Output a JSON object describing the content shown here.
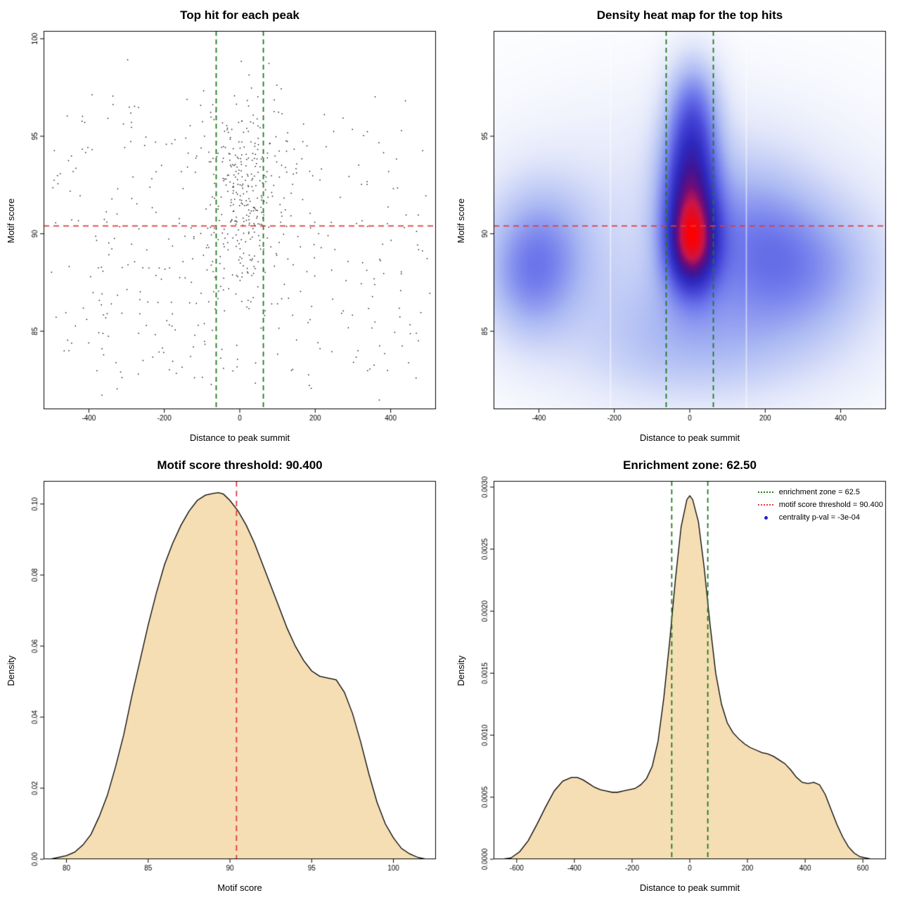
{
  "colors": {
    "background": "#ffffff",
    "threshold_line": "#e23b3b",
    "zone_line": "#1c7a1c",
    "density_fill": "#f5deb3",
    "density_stroke": "#000000",
    "point": "#000000",
    "pval_point": "#2222cc"
  },
  "chart_data": [
    {
      "id": "top-hit-scatter",
      "type": "scatter",
      "title": "Top hit for each peak",
      "xlabel": "Distance to peak summit",
      "ylabel": "Motif score",
      "xlim": [
        -520,
        520
      ],
      "ylim": [
        81,
        100.4
      ],
      "xtick_vals": [
        -400,
        -200,
        0,
        200,
        400
      ],
      "xtick_labels": [
        "-400",
        "-200",
        "0",
        "200",
        "400"
      ],
      "ytick_vals": [
        85,
        90,
        95,
        100
      ],
      "ytick_labels": [
        "85",
        "90",
        "95",
        "100"
      ],
      "red_hline": 90.4,
      "green_vlines": [
        -62.5,
        62.5
      ],
      "points": {
        "n": 680,
        "seed": 1337,
        "clusters": [
          {
            "w": 0.4,
            "x": {
              "dist": "normal",
              "mean": 15,
              "sd": 52
            },
            "y": {
              "dist": "normal",
              "mean": 92.2,
              "sd": 2.7
            }
          },
          {
            "w": 0.4,
            "x": {
              "dist": "uniform",
              "min": -505,
              "max": 505
            },
            "y": {
              "dist": "normal",
              "mean": 89.0,
              "sd": 3.1
            }
          },
          {
            "w": 0.12,
            "x": {
              "dist": "uniform",
              "min": -490,
              "max": 500
            },
            "y": {
              "dist": "uniform",
              "min": 82,
              "max": 86.5
            }
          },
          {
            "w": 0.08,
            "x": {
              "dist": "uniform",
              "min": -500,
              "max": 500
            },
            "y": {
              "dist": "uniform",
              "min": 93,
              "max": 97.6
            }
          }
        ]
      }
    },
    {
      "id": "density-heatmap",
      "type": "heatmap",
      "title": "Density heat map for the top hits",
      "xlabel": "Distance to peak summit",
      "ylabel": "Motif score",
      "xlim": [
        -520,
        520
      ],
      "ylim": [
        81,
        100.4
      ],
      "xtick_vals": [
        -400,
        -200,
        0,
        200,
        400
      ],
      "xtick_labels": [
        "-400",
        "-200",
        "0",
        "200",
        "400"
      ],
      "ytick_vals": [
        85,
        90,
        95
      ],
      "ytick_labels": [
        "85",
        "90",
        "95"
      ],
      "red_hline": 90.4,
      "green_vlines": [
        -62.5,
        62.5
      ],
      "kernels": [
        {
          "x": 5,
          "y": 89.3,
          "sx": 48,
          "sy": 1.7,
          "w": 1.0
        },
        {
          "x": 0,
          "y": 91.5,
          "sx": 52,
          "sy": 2.3,
          "w": 0.85
        },
        {
          "x": 5,
          "y": 94.5,
          "sx": 50,
          "sy": 2.1,
          "w": 0.6
        },
        {
          "x": 10,
          "y": 97.0,
          "sx": 46,
          "sy": 1.7,
          "w": 0.34
        },
        {
          "x": -395,
          "y": 89.3,
          "sx": 95,
          "sy": 2.4,
          "w": 0.42
        },
        {
          "x": -430,
          "y": 87.3,
          "sx": 80,
          "sy": 2.1,
          "w": 0.28
        },
        {
          "x": 300,
          "y": 88.2,
          "sx": 140,
          "sy": 2.5,
          "w": 0.44
        },
        {
          "x": 160,
          "y": 90.3,
          "sx": 110,
          "sy": 2.7,
          "w": 0.3
        },
        {
          "x": 0,
          "y": 89.8,
          "sx": 380,
          "sy": 4.8,
          "w": 0.2
        },
        {
          "x": -20,
          "y": 85.3,
          "sx": 190,
          "sy": 2.3,
          "w": 0.22
        },
        {
          "x": 60,
          "y": 83.5,
          "sx": 260,
          "sy": 1.9,
          "w": 0.13
        }
      ],
      "colormap": [
        [
          0.0,
          [
            255,
            255,
            255
          ]
        ],
        [
          0.1,
          [
            226,
            231,
            250
          ]
        ],
        [
          0.25,
          [
            172,
            186,
            243
          ]
        ],
        [
          0.4,
          [
            112,
            122,
            236
          ]
        ],
        [
          0.52,
          [
            72,
            72,
            216
          ]
        ],
        [
          0.63,
          [
            46,
            42,
            192
          ]
        ],
        [
          0.73,
          [
            62,
            22,
            152
          ]
        ],
        [
          0.81,
          [
            112,
            12,
            122
          ]
        ],
        [
          0.89,
          [
            202,
            22,
            72
          ]
        ],
        [
          1.0,
          [
            255,
            0,
            0
          ]
        ]
      ],
      "streaks": [
        -210,
        150
      ]
    },
    {
      "id": "motif-score-density",
      "type": "density",
      "title": "Motif score threshold: 90.400",
      "xlabel": "Motif score",
      "ylabel": "Density",
      "xlim": [
        78.6,
        102.6
      ],
      "ylim": [
        0,
        0.1065
      ],
      "xtick_vals": [
        80,
        85,
        90,
        95,
        100
      ],
      "xtick_labels": [
        "80",
        "85",
        "90",
        "95",
        "100"
      ],
      "ytick_vals": [
        0,
        0.02,
        0.04,
        0.06,
        0.08,
        0.1
      ],
      "ytick_labels": [
        "0.00",
        "0.02",
        "0.04",
        "0.06",
        "0.08",
        "0.10"
      ],
      "red_vline": 90.4,
      "curve_x": [
        79,
        80,
        80.5,
        81,
        81.5,
        82,
        82.5,
        83,
        83.5,
        84,
        84.5,
        85,
        85.5,
        86,
        86.5,
        87,
        87.5,
        88,
        88.5,
        89,
        89.3,
        89.6,
        90,
        90.5,
        91,
        91.5,
        92,
        92.5,
        93,
        93.5,
        94,
        94.5,
        95,
        95.5,
        96,
        96.5,
        97,
        97.5,
        98,
        98.5,
        99,
        99.5,
        100,
        100.5,
        101,
        101.5,
        102
      ],
      "curve_y": [
        0,
        0.001,
        0.002,
        0.004,
        0.007,
        0.012,
        0.018,
        0.026,
        0.035,
        0.046,
        0.056,
        0.066,
        0.075,
        0.083,
        0.089,
        0.094,
        0.098,
        0.101,
        0.1025,
        0.103,
        0.1032,
        0.1028,
        0.101,
        0.098,
        0.094,
        0.089,
        0.083,
        0.077,
        0.071,
        0.065,
        0.06,
        0.056,
        0.053,
        0.0515,
        0.051,
        0.0505,
        0.047,
        0.041,
        0.033,
        0.024,
        0.016,
        0.01,
        0.006,
        0.003,
        0.0015,
        0.0005,
        0
      ]
    },
    {
      "id": "distance-density",
      "type": "density",
      "title": "Enrichment zone: 62.50",
      "xlabel": "Distance to peak summit",
      "ylabel": "Density",
      "xlim": [
        -680,
        680
      ],
      "ylim": [
        0,
        0.00305
      ],
      "xtick_vals": [
        -600,
        -400,
        -200,
        0,
        200,
        400,
        600
      ],
      "xtick_labels": [
        "-600",
        "-400",
        "-200",
        "0",
        "200",
        "400",
        "600"
      ],
      "ytick_vals": [
        0,
        0.0005,
        0.001,
        0.0015,
        0.002,
        0.0025,
        0.003
      ],
      "ytick_labels": [
        "0.0000",
        "0.0005",
        "0.0010",
        "0.0015",
        "0.0020",
        "0.0025",
        "0.0030"
      ],
      "green_vlines": [
        -62.5,
        62.5
      ],
      "curve_x": [
        -650,
        -620,
        -590,
        -560,
        -530,
        -500,
        -470,
        -440,
        -410,
        -390,
        -370,
        -350,
        -330,
        -310,
        -290,
        -270,
        -250,
        -230,
        -210,
        -190,
        -170,
        -150,
        -130,
        -110,
        -90,
        -70,
        -50,
        -30,
        -10,
        0,
        10,
        30,
        50,
        70,
        90,
        110,
        130,
        150,
        170,
        190,
        210,
        230,
        250,
        270,
        290,
        310,
        330,
        350,
        370,
        390,
        410,
        430,
        450,
        470,
        490,
        510,
        530,
        550,
        570,
        590,
        610,
        630,
        650
      ],
      "curve_y": [
        0,
        1e-05,
        6e-05,
        0.00015,
        0.00028,
        0.00042,
        0.00055,
        0.00063,
        0.00066,
        0.00066,
        0.00064,
        0.00061,
        0.00058,
        0.00056,
        0.00055,
        0.00054,
        0.00054,
        0.00055,
        0.00056,
        0.00057,
        0.0006,
        0.00065,
        0.00075,
        0.00095,
        0.0013,
        0.00175,
        0.00225,
        0.00268,
        0.0029,
        0.00293,
        0.0029,
        0.00272,
        0.00235,
        0.0019,
        0.0015,
        0.00125,
        0.0011,
        0.00102,
        0.00097,
        0.00093,
        0.0009,
        0.00088,
        0.00086,
        0.00085,
        0.00083,
        0.0008,
        0.00077,
        0.00072,
        0.00066,
        0.00062,
        0.00061,
        0.00062,
        0.0006,
        0.00052,
        0.0004,
        0.00028,
        0.00018,
        0.0001,
        5e-05,
        2e-05,
        1e-05,
        0,
        0
      ],
      "legend": {
        "entries": [
          {
            "label": "enrichment zone = 62.5",
            "glyph": "dotted-line",
            "color": "#1c7a1c"
          },
          {
            "label": "motif score threshold = 90.400",
            "glyph": "dotted-line",
            "color": "#e23b3b"
          },
          {
            "label": "centrality p-val = -3e-04",
            "glyph": "point",
            "color": "#2222cc"
          }
        ]
      }
    }
  ]
}
